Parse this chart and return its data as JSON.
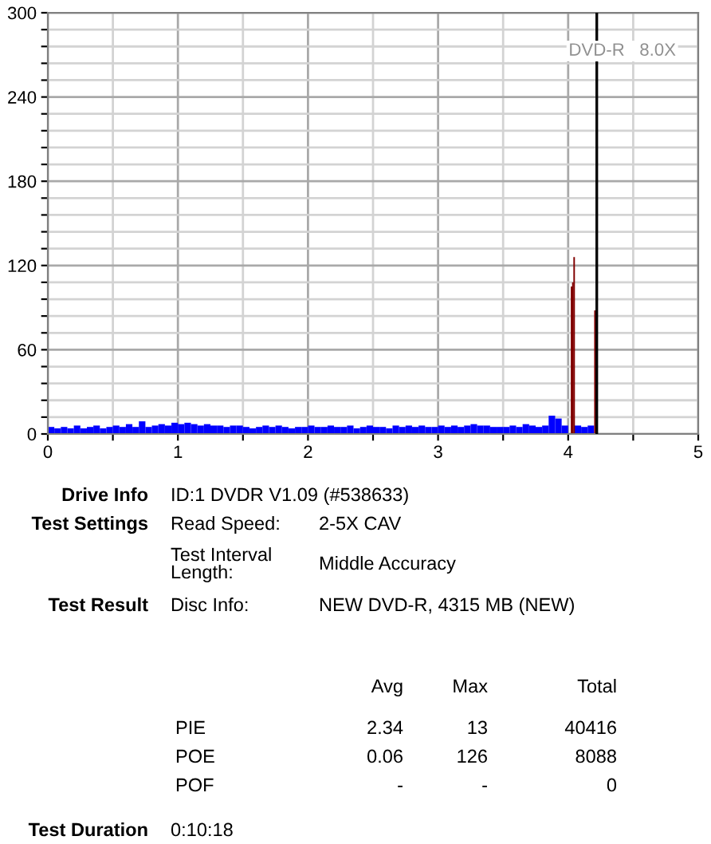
{
  "chart_data": {
    "type": "bar",
    "xlim": [
      0,
      5
    ],
    "ylim": [
      0,
      300
    ],
    "xticks": [
      0,
      {
        "value": 0.5,
        "label": null
      },
      1,
      {
        "value": 1.5,
        "label": null
      },
      2,
      {
        "value": 2.5,
        "label": null
      },
      3,
      {
        "value": 3.5,
        "label": null
      },
      4,
      {
        "value": 4.5,
        "label": null
      },
      5
    ],
    "yticks": [
      0,
      {
        "value": 12,
        "label": null
      },
      {
        "value": 24,
        "label": null
      },
      {
        "value": 36,
        "label": null
      },
      {
        "value": 48,
        "label": null
      },
      60,
      {
        "value": 72,
        "label": null
      },
      {
        "value": 84,
        "label": null
      },
      {
        "value": 96,
        "label": null
      },
      {
        "value": 108,
        "label": null
      },
      120,
      {
        "value": 132,
        "label": null
      },
      {
        "value": 144,
        "label": null
      },
      {
        "value": 156,
        "label": null
      },
      {
        "value": 168,
        "label": null
      },
      180,
      {
        "value": 192,
        "label": null
      },
      {
        "value": 204,
        "label": null
      },
      {
        "value": 216,
        "label": null
      },
      {
        "value": 228,
        "label": null
      },
      240,
      {
        "value": 252,
        "label": null
      },
      {
        "value": 264,
        "label": null
      },
      {
        "value": 276,
        "label": null
      },
      {
        "value": 288,
        "label": null
      },
      300
    ],
    "grid": true,
    "series": [
      {
        "color": "#0000ff",
        "x": [
          0.0,
          0.05,
          0.1,
          0.15,
          0.2,
          0.25,
          0.3,
          0.35,
          0.4,
          0.45,
          0.5,
          0.55,
          0.6,
          0.65,
          0.7,
          0.75,
          0.8,
          0.85,
          0.9,
          0.95,
          1.0,
          1.05,
          1.1,
          1.15,
          1.2,
          1.25,
          1.3,
          1.35,
          1.4,
          1.45,
          1.5,
          1.55,
          1.6,
          1.65,
          1.7,
          1.75,
          1.8,
          1.85,
          1.9,
          1.95,
          2.0,
          2.05,
          2.1,
          2.15,
          2.2,
          2.25,
          2.3,
          2.35,
          2.4,
          2.45,
          2.5,
          2.55,
          2.6,
          2.65,
          2.7,
          2.75,
          2.8,
          2.85,
          2.9,
          2.95,
          3.0,
          3.05,
          3.1,
          3.15,
          3.2,
          3.25,
          3.3,
          3.35,
          3.4,
          3.45,
          3.5,
          3.55,
          3.6,
          3.65,
          3.7,
          3.75,
          3.8,
          3.85,
          3.9,
          3.95,
          4.0,
          4.05,
          4.1,
          4.15
        ],
        "values": [
          5,
          4,
          5,
          4,
          6,
          4,
          5,
          6,
          4,
          5,
          6,
          5,
          7,
          5,
          9,
          5,
          6,
          7,
          6,
          8,
          7,
          8,
          7,
          6,
          7,
          6,
          6,
          5,
          6,
          6,
          5,
          4,
          5,
          6,
          5,
          6,
          5,
          4,
          5,
          5,
          6,
          5,
          5,
          6,
          5,
          5,
          6,
          4,
          5,
          6,
          5,
          5,
          4,
          6,
          5,
          6,
          5,
          6,
          5,
          5,
          6,
          5,
          6,
          5,
          6,
          7,
          6,
          6,
          5,
          5,
          5,
          6,
          5,
          7,
          6,
          5,
          6,
          13,
          11,
          6,
          null,
          6,
          5,
          6
        ]
      },
      {
        "color": "#800000",
        "x": [
          4.02,
          4.03,
          4.04,
          4.2
        ],
        "values": [
          105,
          108,
          126,
          88
        ]
      }
    ],
    "ref_lines": [
      {
        "axis": "x",
        "value": 4.22,
        "color": "#000000"
      }
    ],
    "annotations": [
      "Drive Info",
      "ID:1 DVDR V1.09 (#538633)",
      "Test Settings",
      "Read Speed:",
      "2-5X CAV",
      "Test Interval\nLength:",
      "Middle Accuracy",
      "Test Result",
      "Disc Info:",
      "NEW DVD-R, 4315 MB (NEW)",
      "Avg",
      "Max",
      "Total",
      "PIE",
      "2.34",
      "13",
      "40416",
      "POE",
      "0.06",
      "126",
      "8088",
      "POF",
      "-",
      "-",
      "0",
      "Test Duration",
      "0:10:18",
      "DVD-R   8.0X"
    ]
  }
}
